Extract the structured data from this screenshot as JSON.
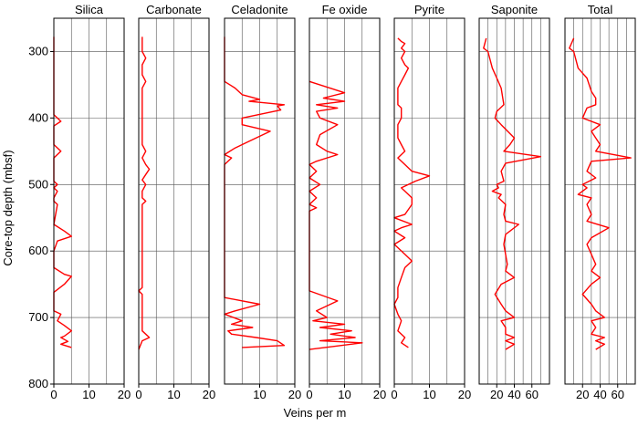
{
  "chart_data": {
    "type": "line",
    "y_axis": {
      "label": "Core-top depth (mbsf)",
      "range": [
        250,
        800
      ],
      "inverted": true,
      "ticks": [
        300,
        400,
        500,
        600,
        700,
        800
      ],
      "grid": true
    },
    "xlabel": "Veins per m",
    "line_color": "#ff0000",
    "panels": [
      {
        "name": "Silica",
        "xlim": [
          0,
          20
        ],
        "ticks": [
          0,
          10,
          20
        ],
        "grid_x": [
          5,
          10,
          15
        ],
        "series": [
          [
            0,
            278
          ],
          [
            0,
            395
          ],
          [
            2,
            405
          ],
          [
            0,
            412
          ],
          [
            0,
            440
          ],
          [
            2,
            450
          ],
          [
            0,
            460
          ],
          [
            0,
            495
          ],
          [
            1,
            500
          ],
          [
            0,
            505
          ],
          [
            1,
            510
          ],
          [
            0,
            520
          ],
          [
            0,
            525
          ],
          [
            1,
            530
          ],
          [
            0,
            560
          ],
          [
            3,
            570
          ],
          [
            5,
            578
          ],
          [
            1,
            585
          ],
          [
            0,
            600
          ],
          [
            0,
            625
          ],
          [
            3,
            635
          ],
          [
            5,
            638
          ],
          [
            3,
            650
          ],
          [
            0,
            662
          ],
          [
            0,
            690
          ],
          [
            2,
            695
          ],
          [
            1,
            705
          ],
          [
            3,
            712
          ],
          [
            5,
            720
          ],
          [
            3,
            728
          ],
          [
            2,
            730
          ],
          [
            4,
            736
          ],
          [
            2,
            740
          ],
          [
            5,
            745
          ]
        ]
      },
      {
        "name": "Carbonate",
        "xlim": [
          0,
          20
        ],
        "ticks": [
          0,
          10,
          20
        ],
        "grid_x": [
          5,
          10,
          15
        ],
        "series": [
          [
            1,
            278
          ],
          [
            1,
            300
          ],
          [
            2,
            310
          ],
          [
            1,
            320
          ],
          [
            1,
            335
          ],
          [
            2,
            345
          ],
          [
            1,
            355
          ],
          [
            1,
            440
          ],
          [
            2,
            450
          ],
          [
            1,
            460
          ],
          [
            2,
            470
          ],
          [
            3,
            477
          ],
          [
            2,
            485
          ],
          [
            1,
            493
          ],
          [
            2,
            500
          ],
          [
            1,
            510
          ],
          [
            1,
            520
          ],
          [
            2,
            525
          ],
          [
            1,
            530
          ],
          [
            1,
            655
          ],
          [
            0,
            660
          ],
          [
            1,
            665
          ],
          [
            1,
            720
          ],
          [
            2,
            725
          ],
          [
            3,
            730
          ],
          [
            1,
            735
          ],
          [
            0,
            748
          ]
        ]
      },
      {
        "name": "Celadonite",
        "xlim": [
          0,
          20
        ],
        "ticks": [
          10,
          20
        ],
        "grid_x": [
          5,
          10,
          15
        ],
        "series": [
          [
            0,
            278
          ],
          [
            0,
            345
          ],
          [
            3,
            355
          ],
          [
            5,
            365
          ],
          [
            10,
            372
          ],
          [
            7,
            375
          ],
          [
            17,
            380
          ],
          [
            15,
            382
          ],
          [
            16,
            388
          ],
          [
            5,
            400
          ],
          [
            5,
            410
          ],
          [
            13,
            420
          ],
          [
            7,
            435
          ],
          [
            3,
            445
          ],
          [
            0,
            455
          ],
          [
            2,
            460
          ],
          [
            0,
            470
          ],
          [
            0,
            480
          ],
          [
            0,
            490
          ],
          [
            0,
            670
          ],
          [
            10,
            680
          ],
          [
            3,
            690
          ],
          [
            0,
            695
          ],
          [
            5,
            705
          ],
          [
            2,
            710
          ],
          [
            8,
            715
          ],
          [
            1,
            720
          ],
          [
            2,
            725
          ],
          [
            9,
            730
          ],
          [
            15,
            735
          ],
          [
            17,
            742
          ],
          [
            5,
            745
          ]
        ]
      },
      {
        "name": "Fe oxide",
        "xlim": [
          0,
          20
        ],
        "ticks": [
          0,
          10,
          20
        ],
        "grid_x": [
          5,
          10,
          15
        ],
        "series": [
          [
            0,
            345
          ],
          [
            10,
            362
          ],
          [
            4,
            370
          ],
          [
            10,
            375
          ],
          [
            2,
            380
          ],
          [
            8,
            385
          ],
          [
            2,
            390
          ],
          [
            3,
            400
          ],
          [
            8,
            410
          ],
          [
            3,
            425
          ],
          [
            2,
            440
          ],
          [
            5,
            450
          ],
          [
            8,
            455
          ],
          [
            2,
            465
          ],
          [
            0,
            470
          ],
          [
            2,
            480
          ],
          [
            0,
            490
          ],
          [
            3,
            500
          ],
          [
            0,
            510
          ],
          [
            2,
            520
          ],
          [
            0,
            530
          ],
          [
            2,
            535
          ],
          [
            0,
            540
          ],
          [
            0,
            660
          ],
          [
            8,
            675
          ],
          [
            2,
            690
          ],
          [
            5,
            700
          ],
          [
            1,
            705
          ],
          [
            10,
            710
          ],
          [
            3,
            715
          ],
          [
            12,
            720
          ],
          [
            6,
            725
          ],
          [
            13,
            730
          ],
          [
            3,
            735
          ],
          [
            15,
            738
          ],
          [
            0,
            748
          ]
        ]
      },
      {
        "name": "Pyrite",
        "xlim": [
          0,
          20
        ],
        "ticks": [
          0,
          10,
          20
        ],
        "grid_x": [
          5,
          10,
          15
        ],
        "series": [
          [
            1,
            280
          ],
          [
            2,
            285
          ],
          [
            3,
            288
          ],
          [
            2,
            295
          ],
          [
            3,
            300
          ],
          [
            2,
            310
          ],
          [
            3,
            320
          ],
          [
            4,
            325
          ],
          [
            3,
            335
          ],
          [
            2,
            345
          ],
          [
            1,
            355
          ],
          [
            1,
            380
          ],
          [
            2,
            385
          ],
          [
            2,
            400
          ],
          [
            1,
            410
          ],
          [
            1,
            430
          ],
          [
            2,
            440
          ],
          [
            3,
            450
          ],
          [
            1,
            460
          ],
          [
            3,
            470
          ],
          [
            5,
            480
          ],
          [
            10,
            487
          ],
          [
            6,
            495
          ],
          [
            2,
            505
          ],
          [
            5,
            520
          ],
          [
            5,
            530
          ],
          [
            3,
            545
          ],
          [
            0,
            550
          ],
          [
            5,
            560
          ],
          [
            2,
            565
          ],
          [
            0,
            570
          ],
          [
            3,
            580
          ],
          [
            0,
            590
          ],
          [
            1,
            595
          ],
          [
            3,
            605
          ],
          [
            5,
            615
          ],
          [
            3,
            625
          ],
          [
            2,
            640
          ],
          [
            1,
            655
          ],
          [
            1,
            670
          ],
          [
            0,
            680
          ],
          [
            1,
            695
          ],
          [
            2,
            705
          ],
          [
            1,
            720
          ],
          [
            3,
            730
          ],
          [
            2,
            738
          ],
          [
            4,
            745
          ]
        ]
      },
      {
        "name": "Saponite",
        "xlim": [
          0,
          80
        ],
        "ticks": [
          20,
          40,
          60
        ],
        "grid_x": [
          10,
          20,
          30,
          40,
          50,
          60,
          70
        ],
        "series": [
          [
            8,
            280
          ],
          [
            5,
            295
          ],
          [
            10,
            300
          ],
          [
            15,
            325
          ],
          [
            20,
            340
          ],
          [
            25,
            355
          ],
          [
            28,
            380
          ],
          [
            20,
            390
          ],
          [
            18,
            400
          ],
          [
            25,
            410
          ],
          [
            40,
            430
          ],
          [
            35,
            440
          ],
          [
            28,
            450
          ],
          [
            70,
            458
          ],
          [
            30,
            468
          ],
          [
            25,
            480
          ],
          [
            28,
            495
          ],
          [
            20,
            500
          ],
          [
            22,
            505
          ],
          [
            15,
            510
          ],
          [
            25,
            515
          ],
          [
            22,
            520
          ],
          [
            30,
            530
          ],
          [
            28,
            545
          ],
          [
            30,
            555
          ],
          [
            45,
            560
          ],
          [
            30,
            575
          ],
          [
            28,
            590
          ],
          [
            30,
            605
          ],
          [
            32,
            620
          ],
          [
            30,
            630
          ],
          [
            40,
            640
          ],
          [
            25,
            650
          ],
          [
            18,
            665
          ],
          [
            25,
            680
          ],
          [
            30,
            690
          ],
          [
            40,
            700
          ],
          [
            25,
            705
          ],
          [
            30,
            715
          ],
          [
            30,
            725
          ],
          [
            40,
            730
          ],
          [
            30,
            735
          ],
          [
            40,
            740
          ],
          [
            30,
            748
          ]
        ]
      },
      {
        "name": "Total",
        "xlim": [
          0,
          80
        ],
        "ticks": [
          20,
          40,
          60
        ],
        "grid_x": [
          10,
          20,
          30,
          40,
          50,
          60,
          70
        ],
        "series": [
          [
            10,
            280
          ],
          [
            5,
            295
          ],
          [
            10,
            300
          ],
          [
            15,
            325
          ],
          [
            25,
            340
          ],
          [
            30,
            360
          ],
          [
            35,
            370
          ],
          [
            35,
            380
          ],
          [
            25,
            385
          ],
          [
            20,
            400
          ],
          [
            40,
            410
          ],
          [
            30,
            420
          ],
          [
            35,
            430
          ],
          [
            40,
            440
          ],
          [
            35,
            450
          ],
          [
            75,
            460
          ],
          [
            30,
            465
          ],
          [
            25,
            480
          ],
          [
            35,
            490
          ],
          [
            20,
            500
          ],
          [
            25,
            505
          ],
          [
            15,
            515
          ],
          [
            30,
            520
          ],
          [
            25,
            530
          ],
          [
            30,
            545
          ],
          [
            25,
            555
          ],
          [
            50,
            565
          ],
          [
            30,
            580
          ],
          [
            25,
            590
          ],
          [
            30,
            605
          ],
          [
            35,
            620
          ],
          [
            30,
            630
          ],
          [
            40,
            640
          ],
          [
            30,
            650
          ],
          [
            20,
            665
          ],
          [
            30,
            680
          ],
          [
            35,
            690
          ],
          [
            45,
            700
          ],
          [
            30,
            705
          ],
          [
            35,
            715
          ],
          [
            30,
            725
          ],
          [
            45,
            730
          ],
          [
            35,
            735
          ],
          [
            45,
            740
          ],
          [
            35,
            748
          ]
        ]
      }
    ]
  }
}
